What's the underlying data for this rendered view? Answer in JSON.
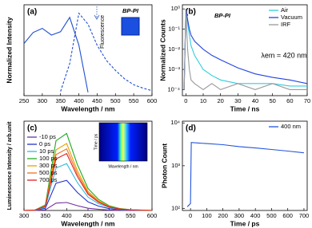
{
  "chart_data": [
    {
      "type": "line",
      "label": "(a)",
      "xlabel": "Wavelength / nm",
      "ylabel": "Normalized Intensity",
      "xlim": [
        250,
        600
      ],
      "xticks": [
        250,
        300,
        350,
        400,
        450,
        500,
        550,
        600
      ],
      "ylim": [
        0,
        1.08
      ],
      "x": [
        250,
        275,
        300,
        325,
        350,
        375,
        400,
        425,
        450,
        475,
        500,
        525,
        550,
        575,
        600
      ],
      "series": [
        {
          "color": "#1f4fd0",
          "dash": false,
          "values": [
            0.62,
            0.75,
            0.8,
            0.72,
            0.76,
            0.93,
            0.6,
            0.04,
            null,
            null,
            null,
            null,
            null,
            null,
            null
          ]
        },
        {
          "color": "#1f4fd0",
          "dash": true,
          "values": [
            null,
            null,
            null,
            null,
            0.05,
            0.38,
            0.98,
            0.85,
            0.6,
            0.42,
            0.3,
            0.2,
            0.13,
            0.09,
            0.06
          ]
        }
      ],
      "annotations": [
        "BP-PI",
        "Fluorescence"
      ]
    },
    {
      "type": "line",
      "label": "(b)",
      "xlabel": "Time / ns",
      "ylabel": "Normalized Counts",
      "log": true,
      "xlim": [
        -2,
        70
      ],
      "xticks": [
        0,
        10,
        20,
        30,
        40,
        50,
        60,
        70
      ],
      "ylim": [
        5e-05,
        1.6
      ],
      "yticks": [
        {
          "value": 0.0001,
          "label": "10⁻⁴"
        },
        {
          "value": 0.001,
          "label": "10⁻³"
        },
        {
          "value": 0.01,
          "label": "10⁻²"
        },
        {
          "value": 0.1,
          "label": "10⁻¹"
        },
        {
          "value": 1,
          "label": "10⁰"
        }
      ],
      "x": [
        -1,
        0,
        1,
        2,
        3,
        5,
        10,
        15,
        20,
        30,
        40,
        50,
        60,
        70
      ],
      "series": [
        {
          "name": "Air",
          "color": "#33ccdd",
          "values": [
            0.0001,
            1,
            0.2,
            0.05,
            0.015,
            0.005,
            0.001,
            0.0005,
            0.0003,
            0.0002,
            0.0002,
            0.0002,
            0.00015,
            0.00015
          ]
        },
        {
          "name": "Vacuum",
          "color": "#2244dd",
          "values": [
            0.0001,
            1,
            0.3,
            0.1,
            0.05,
            0.025,
            0.01,
            0.005,
            0.003,
            0.0012,
            0.0006,
            0.0004,
            0.0003,
            0.0002
          ]
        },
        {
          "name": "IRF",
          "color": "#999999",
          "values": [
            0.0001,
            1,
            0.01,
            0.001,
            0.0003,
            0.0002,
            0.0001,
            0.0002,
            0.0001,
            0.0002,
            0.0001,
            0.0002,
            0.0001,
            0.0001
          ]
        }
      ],
      "legend": "upper right",
      "annotations": [
        "BP-PI",
        "λem = 420 nm"
      ]
    },
    {
      "type": "line",
      "label": "(c)",
      "xlabel": "Wavelength / nm",
      "ylabel": "Luminescence Intensity / arb.unit",
      "xlim": [
        300,
        600
      ],
      "xticks": [
        300,
        350,
        400,
        450,
        500,
        550,
        600
      ],
      "ylim": [
        0,
        560
      ],
      "x": [
        300,
        325,
        350,
        375,
        400,
        425,
        450,
        475,
        500,
        525,
        550,
        575,
        600
      ],
      "series": [
        {
          "name": "-10 ps",
          "color": "#7030a0",
          "values": [
            0,
            0,
            4,
            46,
            50,
            30,
            14,
            7,
            3,
            1,
            0,
            0,
            0
          ]
        },
        {
          "name": "0 ps",
          "color": "#2233cc",
          "values": [
            0,
            1,
            14,
            171,
            189,
            113,
            54,
            27,
            11,
            5,
            2,
            1,
            0
          ]
        },
        {
          "name": "10 ps",
          "color": "#33bbdd",
          "values": [
            0,
            1,
            21,
            266,
            294,
            175,
            84,
            42,
            18,
            7,
            3,
            1,
            0
          ]
        },
        {
          "name": "100 ps",
          "color": "#22aa22",
          "values": [
            0,
            2,
            35,
            437,
            483,
            288,
            138,
            69,
            29,
            12,
            5,
            2,
            0
          ]
        },
        {
          "name": "300 ps",
          "color": "#e8a000",
          "values": [
            0,
            2,
            30,
            380,
            420,
            250,
            120,
            60,
            25,
            10,
            4,
            2,
            0
          ]
        },
        {
          "name": "500 ps",
          "color": "#f07020",
          "values": [
            0,
            2,
            28,
            350,
            386,
            230,
            110,
            55,
            23,
            9,
            4,
            2,
            0
          ]
        },
        {
          "name": "700 ps",
          "color": "#e02020",
          "values": [
            0,
            2,
            26,
            323,
            357,
            213,
            102,
            51,
            21,
            9,
            3,
            2,
            0
          ]
        }
      ],
      "legend": "upper left",
      "annotations": [
        "Time / ps",
        "Wavelength / nm"
      ]
    },
    {
      "type": "line",
      "label": "(d)",
      "xlabel": "Time / ps",
      "ylabel": "Photon Count",
      "log": true,
      "xlim": [
        -50,
        720
      ],
      "xticks": [
        0,
        100,
        200,
        300,
        400,
        500,
        600,
        700
      ],
      "ylim": [
        90,
        11000
      ],
      "yticks": [
        {
          "value": 100,
          "label": "10²"
        },
        {
          "value": 1000,
          "label": "10³"
        },
        {
          "value": 10000,
          "label": "10⁴"
        }
      ],
      "x": [
        -20,
        0,
        5,
        50,
        100,
        200,
        300,
        400,
        500,
        600,
        700
      ],
      "series": [
        {
          "name": "400 nm",
          "color": "#2255dd",
          "values": [
            110,
            130,
            3500,
            3400,
            3300,
            3100,
            2800,
            2600,
            2400,
            2200,
            2000
          ]
        }
      ],
      "legend": "upper right"
    }
  ]
}
